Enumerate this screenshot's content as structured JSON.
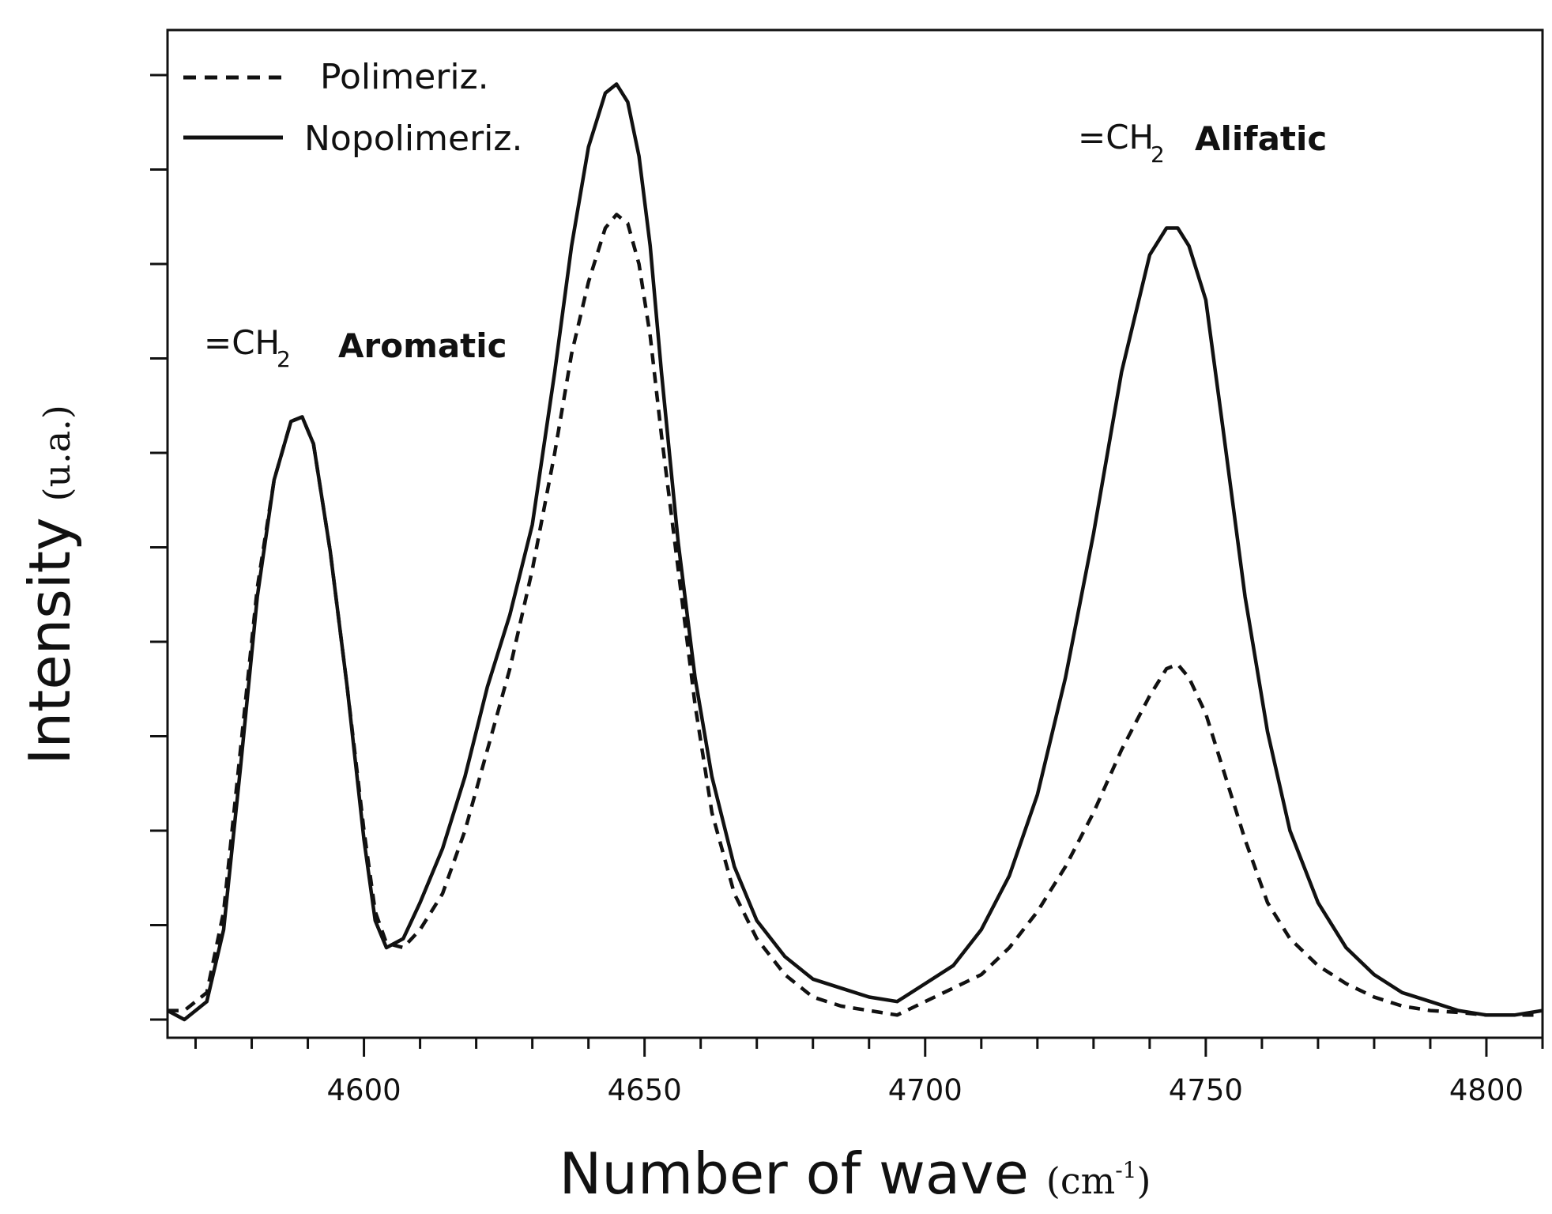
{
  "chart_data": {
    "type": "line",
    "xlabel": "Number of wave",
    "xlabel_unit": "cm",
    "xlabel_unit_exp": "-1",
    "ylabel": "Intensity",
    "ylabel_unit": "(u.a.)",
    "xlim": [
      4565,
      4810
    ],
    "ylim": [
      0,
      1.05
    ],
    "x_ticks": [
      4600,
      4650,
      4700,
      4750,
      4800
    ],
    "x_tick_labels": [
      "4600",
      "4650",
      "4700",
      "4750",
      "4800"
    ],
    "legend_position": "top-left",
    "grid": false,
    "series": [
      {
        "name": "Polimeriz.",
        "style": "dashed",
        "x": [
          4565,
          4568,
          4572,
          4575,
          4578,
          4581,
          4584,
          4587,
          4589,
          4591,
          4594,
          4597,
          4600,
          4602,
          4604,
          4607,
          4610,
          4614,
          4618,
          4622,
          4626,
          4630,
          4634,
          4637,
          4640,
          4643,
          4645,
          4647,
          4649,
          4651,
          4653,
          4656,
          4659,
          4662,
          4666,
          4670,
          4675,
          4680,
          4685,
          4690,
          4695,
          4700,
          4705,
          4710,
          4715,
          4720,
          4725,
          4730,
          4735,
          4740,
          4743,
          4745,
          4747,
          4750,
          4753,
          4757,
          4761,
          4765,
          4770,
          4775,
          4780,
          4785,
          4790,
          4795,
          4800,
          4805,
          4810
        ],
        "values": [
          0.01,
          0.01,
          0.03,
          0.12,
          0.3,
          0.48,
          0.6,
          0.665,
          0.67,
          0.64,
          0.52,
          0.37,
          0.21,
          0.12,
          0.085,
          0.08,
          0.1,
          0.14,
          0.21,
          0.3,
          0.39,
          0.5,
          0.63,
          0.74,
          0.82,
          0.88,
          0.895,
          0.885,
          0.84,
          0.76,
          0.65,
          0.5,
          0.35,
          0.23,
          0.14,
          0.09,
          0.05,
          0.025,
          0.015,
          0.01,
          0.005,
          0.02,
          0.035,
          0.05,
          0.08,
          0.12,
          0.17,
          0.23,
          0.3,
          0.36,
          0.39,
          0.395,
          0.38,
          0.34,
          0.28,
          0.2,
          0.13,
          0.09,
          0.06,
          0.04,
          0.025,
          0.015,
          0.01,
          0.008,
          0.005,
          0.005,
          0.005
        ]
      },
      {
        "name": "Nopolimeriz.",
        "style": "solid",
        "x": [
          4565,
          4568,
          4572,
          4575,
          4578,
          4581,
          4584,
          4587,
          4589,
          4591,
          4594,
          4597,
          4600,
          4602,
          4604,
          4607,
          4610,
          4614,
          4618,
          4622,
          4626,
          4630,
          4634,
          4637,
          4640,
          4643,
          4645,
          4647,
          4649,
          4651,
          4653,
          4656,
          4659,
          4662,
          4666,
          4670,
          4675,
          4680,
          4685,
          4690,
          4695,
          4700,
          4705,
          4710,
          4715,
          4720,
          4725,
          4730,
          4735,
          4740,
          4743,
          4745,
          4747,
          4750,
          4753,
          4757,
          4761,
          4765,
          4770,
          4775,
          4780,
          4785,
          4790,
          4795,
          4800,
          4805,
          4810
        ],
        "values": [
          0.01,
          0.0,
          0.02,
          0.1,
          0.28,
          0.47,
          0.6,
          0.665,
          0.67,
          0.64,
          0.52,
          0.37,
          0.2,
          0.11,
          0.08,
          0.09,
          0.13,
          0.19,
          0.27,
          0.37,
          0.45,
          0.55,
          0.72,
          0.86,
          0.97,
          1.03,
          1.04,
          1.02,
          0.96,
          0.86,
          0.72,
          0.53,
          0.38,
          0.27,
          0.17,
          0.11,
          0.07,
          0.045,
          0.035,
          0.025,
          0.02,
          0.04,
          0.06,
          0.1,
          0.16,
          0.25,
          0.38,
          0.54,
          0.72,
          0.85,
          0.88,
          0.88,
          0.86,
          0.8,
          0.66,
          0.47,
          0.32,
          0.21,
          0.13,
          0.08,
          0.05,
          0.03,
          0.02,
          0.01,
          0.005,
          0.005,
          0.01
        ]
      }
    ],
    "annotations": [
      {
        "chem": "=CH",
        "sub": "2",
        "name": "Aromatic"
      },
      {
        "chem": "=CH",
        "sub": "2",
        "name": "Alifatic"
      }
    ]
  }
}
